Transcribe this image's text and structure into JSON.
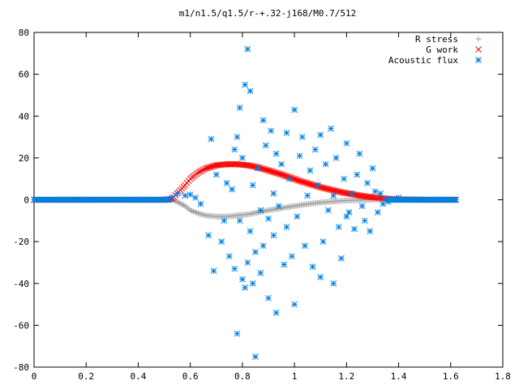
{
  "chart_data": {
    "type": "scatter",
    "title": "m1/n1.5/q1.5/r-+.32-j168/M0.7/512",
    "xlabel": "",
    "ylabel": "",
    "xlim": [
      0,
      1.8
    ],
    "ylim": [
      -80,
      80
    ],
    "x_ticks": [
      "0",
      "0.2",
      "0.4",
      "0.6",
      "0.8",
      "1",
      "1.2",
      "1.4",
      "1.6",
      "1.8"
    ],
    "y_ticks": [
      "80",
      "60",
      "40",
      "20",
      "0",
      "-20",
      "-40",
      "-60",
      "-80"
    ],
    "legend_position": "top-right",
    "grid": false,
    "series": [
      {
        "name": "R stress",
        "marker": "plus",
        "color": "#a0a0a0",
        "points": [
          [
            0.0,
            0
          ],
          [
            0.1,
            0
          ],
          [
            0.2,
            0
          ],
          [
            0.3,
            0
          ],
          [
            0.4,
            0
          ],
          [
            0.5,
            0
          ],
          [
            0.53,
            0
          ],
          [
            0.55,
            -1
          ],
          [
            0.58,
            -3
          ],
          [
            0.6,
            -5
          ],
          [
            0.63,
            -6.5
          ],
          [
            0.66,
            -7.5
          ],
          [
            0.7,
            -8
          ],
          [
            0.74,
            -8
          ],
          [
            0.78,
            -7.5
          ],
          [
            0.82,
            -7
          ],
          [
            0.86,
            -6
          ],
          [
            0.9,
            -5
          ],
          [
            0.94,
            -4.2
          ],
          [
            0.98,
            -3.4
          ],
          [
            1.02,
            -2.6
          ],
          [
            1.06,
            -1.9
          ],
          [
            1.1,
            -1.3
          ],
          [
            1.14,
            -0.9
          ],
          [
            1.18,
            -0.5
          ],
          [
            1.22,
            -0.3
          ],
          [
            1.26,
            -0.1
          ],
          [
            1.3,
            0
          ],
          [
            1.4,
            0
          ],
          [
            1.5,
            0
          ],
          [
            1.62,
            0
          ]
        ]
      },
      {
        "name": "G work",
        "marker": "cross",
        "color": "#ff0000",
        "points": [
          [
            0.0,
            0
          ],
          [
            0.1,
            0
          ],
          [
            0.2,
            0
          ],
          [
            0.3,
            0
          ],
          [
            0.4,
            0
          ],
          [
            0.5,
            0
          ],
          [
            0.53,
            0.5
          ],
          [
            0.55,
            3
          ],
          [
            0.58,
            7
          ],
          [
            0.6,
            10
          ],
          [
            0.63,
            13
          ],
          [
            0.66,
            15
          ],
          [
            0.7,
            16.5
          ],
          [
            0.74,
            17
          ],
          [
            0.78,
            17
          ],
          [
            0.82,
            16.5
          ],
          [
            0.86,
            15.5
          ],
          [
            0.9,
            14
          ],
          [
            0.94,
            12.5
          ],
          [
            0.98,
            10.8
          ],
          [
            1.02,
            9
          ],
          [
            1.06,
            7.5
          ],
          [
            1.1,
            6
          ],
          [
            1.14,
            4.8
          ],
          [
            1.18,
            3.6
          ],
          [
            1.22,
            2.7
          ],
          [
            1.26,
            1.8
          ],
          [
            1.3,
            1.2
          ],
          [
            1.35,
            0.6
          ],
          [
            1.4,
            0.2
          ],
          [
            1.5,
            0
          ],
          [
            1.62,
            0
          ]
        ]
      },
      {
        "name": "Acoustic flux",
        "marker": "star",
        "color": "#0080e0",
        "points": [
          [
            0.0,
            0
          ],
          [
            0.1,
            0
          ],
          [
            0.2,
            0
          ],
          [
            0.3,
            0
          ],
          [
            0.4,
            0
          ],
          [
            0.5,
            0
          ],
          [
            0.53,
            1
          ],
          [
            0.55,
            3
          ],
          [
            0.58,
            2
          ],
          [
            0.6,
            2.5
          ],
          [
            0.62,
            1
          ],
          [
            0.64,
            -2
          ],
          [
            0.67,
            -17
          ],
          [
            0.68,
            29
          ],
          [
            0.69,
            -34
          ],
          [
            0.7,
            12
          ],
          [
            0.72,
            -20
          ],
          [
            0.73,
            -10
          ],
          [
            0.74,
            8
          ],
          [
            0.75,
            -27
          ],
          [
            0.76,
            5
          ],
          [
            0.77,
            -33
          ],
          [
            0.77,
            24
          ],
          [
            0.78,
            -64
          ],
          [
            0.78,
            30
          ],
          [
            0.79,
            -10
          ],
          [
            0.79,
            44
          ],
          [
            0.8,
            -38
          ],
          [
            0.8,
            20
          ],
          [
            0.81,
            -42
          ],
          [
            0.81,
            55
          ],
          [
            0.82,
            -30
          ],
          [
            0.82,
            72
          ],
          [
            0.83,
            -15
          ],
          [
            0.83,
            52
          ],
          [
            0.84,
            -40
          ],
          [
            0.84,
            7
          ],
          [
            0.85,
            -75
          ],
          [
            0.85,
            -25
          ],
          [
            0.86,
            15
          ],
          [
            0.87,
            -35
          ],
          [
            0.87,
            -5
          ],
          [
            0.88,
            38
          ],
          [
            0.88,
            -22
          ],
          [
            0.89,
            26
          ],
          [
            0.9,
            -47
          ],
          [
            0.9,
            -9
          ],
          [
            0.91,
            33
          ],
          [
            0.92,
            -17
          ],
          [
            0.92,
            3
          ],
          [
            0.93,
            -54
          ],
          [
            0.93,
            22
          ],
          [
            0.94,
            -3
          ],
          [
            0.95,
            17
          ],
          [
            0.96,
            -31
          ],
          [
            0.97,
            -13
          ],
          [
            0.97,
            32
          ],
          [
            0.98,
            10
          ],
          [
            0.99,
            -27
          ],
          [
            1.0,
            43
          ],
          [
            1.0,
            -50
          ],
          [
            1.01,
            -8
          ],
          [
            1.02,
            21
          ],
          [
            1.03,
            30
          ],
          [
            1.04,
            -22
          ],
          [
            1.05,
            2
          ],
          [
            1.06,
            14
          ],
          [
            1.07,
            -32
          ],
          [
            1.08,
            24
          ],
          [
            1.09,
            7
          ],
          [
            1.1,
            -37
          ],
          [
            1.1,
            31
          ],
          [
            1.11,
            -20
          ],
          [
            1.12,
            17
          ],
          [
            1.13,
            -5
          ],
          [
            1.14,
            34
          ],
          [
            1.15,
            -40
          ],
          [
            1.15,
            2
          ],
          [
            1.16,
            20
          ],
          [
            1.17,
            -13
          ],
          [
            1.18,
            -28
          ],
          [
            1.19,
            10
          ],
          [
            1.2,
            -8
          ],
          [
            1.2,
            27
          ],
          [
            1.21,
            -6
          ],
          [
            1.22,
            3
          ],
          [
            1.23,
            -14
          ],
          [
            1.24,
            12
          ],
          [
            1.25,
            22
          ],
          [
            1.26,
            -3
          ],
          [
            1.27,
            -10
          ],
          [
            1.28,
            8
          ],
          [
            1.29,
            -15
          ],
          [
            1.3,
            15
          ],
          [
            1.31,
            4
          ],
          [
            1.32,
            -6
          ],
          [
            1.33,
            3
          ],
          [
            1.34,
            -2
          ],
          [
            1.35,
            0.5
          ],
          [
            1.36,
            -1
          ],
          [
            1.38,
            0
          ],
          [
            1.4,
            1
          ],
          [
            1.42,
            0
          ],
          [
            1.45,
            0
          ],
          [
            1.5,
            0
          ],
          [
            1.55,
            0
          ],
          [
            1.62,
            0
          ]
        ]
      }
    ]
  }
}
